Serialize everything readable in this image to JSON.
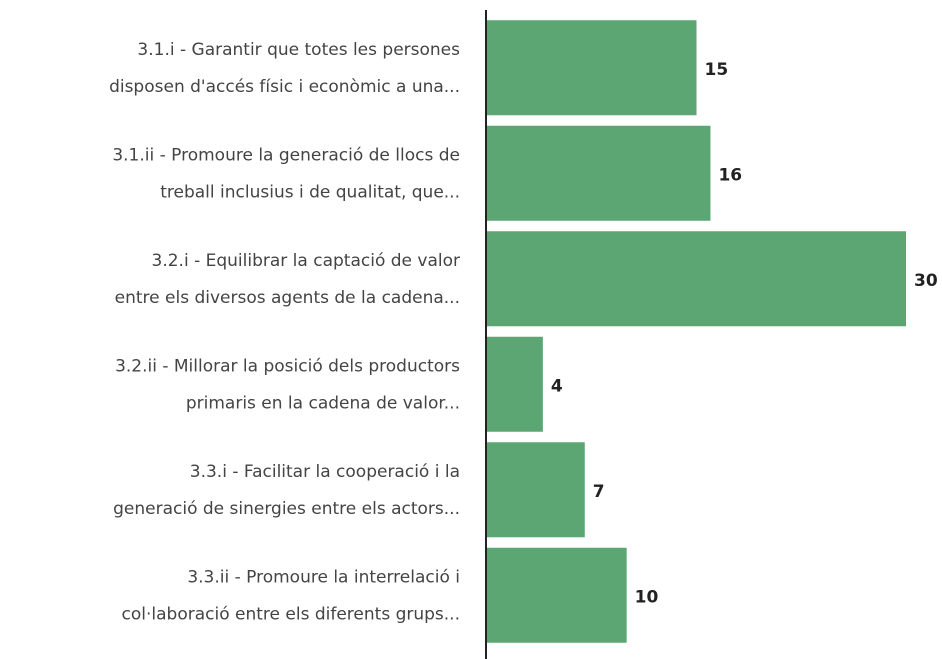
{
  "chart_data": {
    "type": "bar",
    "orientation": "horizontal",
    "categories": [
      [
        "3.1.i - Garantir que totes les persones",
        "disposen d'accés físic i econòmic a una..."
      ],
      [
        "3.1.ii - Promoure la generació de llocs de",
        "treball inclusius i de qualitat, que..."
      ],
      [
        "3.2.i - Equilibrar la captació de valor",
        "entre els diversos agents de la cadena..."
      ],
      [
        "3.2.ii - Millorar la posició dels productors",
        "primaris en la cadena de valor..."
      ],
      [
        "3.3.i - Facilitar la cooperació i la",
        "generació de sinergies entre els actors..."
      ],
      [
        "3.3.ii - Promoure la interrelació i",
        "col·laboració entre els diferents grups..."
      ]
    ],
    "values": [
      15,
      16,
      30,
      4,
      7,
      10
    ],
    "color": "#5ba673",
    "xlim": [
      0,
      30
    ]
  }
}
